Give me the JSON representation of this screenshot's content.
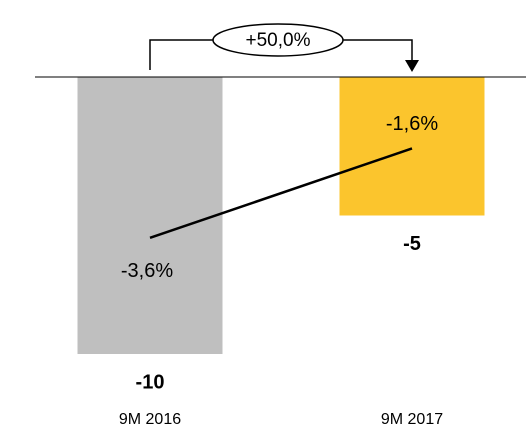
{
  "chart_data": {
    "type": "bar",
    "categories": [
      "9M 2016",
      "9M 2017"
    ],
    "series": [
      {
        "type": "bar",
        "colors": [
          "#bfbfbf",
          "#fbc52d"
        ],
        "values": [
          -10,
          -5
        ]
      },
      {
        "type": "line",
        "axis": "y2",
        "color": "#000000",
        "values": [
          -3.6,
          -1.6
        ],
        "value_labels": [
          "-3,6%",
          "-1,6%"
        ]
      }
    ],
    "ylim": [
      -10,
      0
    ],
    "y2lim": [
      -6.2,
      0
    ],
    "annotation": {
      "text": "+50,0%"
    }
  }
}
